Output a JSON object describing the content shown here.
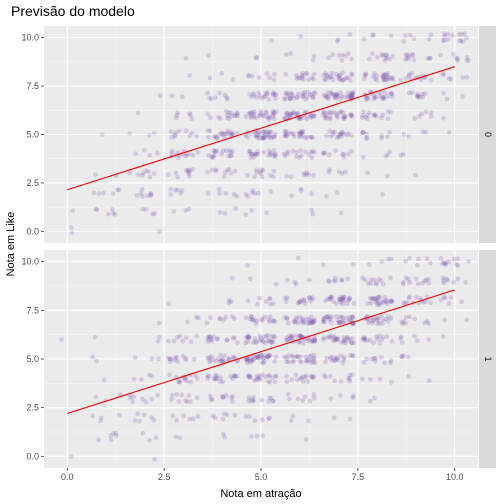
{
  "chart_data": {
    "type": "scatter",
    "title": "Previsão do modelo",
    "xlabel": "Nota em atração",
    "ylabel": "Nota em Like",
    "xlim": [
      -0.6,
      10.6
    ],
    "ylim": [
      -0.6,
      10.6
    ],
    "x_ticks": [
      {
        "value": 0,
        "label": "0.0"
      },
      {
        "value": 2.5,
        "label": "2.5"
      },
      {
        "value": 5,
        "label": "5.0"
      },
      {
        "value": 7.5,
        "label": "7.5"
      },
      {
        "value": 10,
        "label": "10.0"
      }
    ],
    "y_ticks": [
      {
        "value": 0,
        "label": "0.0"
      },
      {
        "value": 2.5,
        "label": "2.5"
      },
      {
        "value": 5,
        "label": "5.0"
      },
      {
        "value": 7.5,
        "label": "7.5"
      },
      {
        "value": 10,
        "label": "10.0"
      }
    ],
    "grid": true,
    "point_color": "#7b52ae",
    "line_color": "#ff0000",
    "panel_background": "#ebebeb",
    "strip_background": "#d9d9d9",
    "facets": [
      {
        "label": "0",
        "fit_line": {
          "x": [
            0,
            10
          ],
          "y": [
            2.15,
            8.5
          ]
        },
        "points": [
          {
            "x": 0,
            "y": 0,
            "n": 2
          },
          {
            "x": 0,
            "y": 1,
            "n": 1
          },
          {
            "x": 1,
            "y": 1,
            "n": 6
          },
          {
            "x": 1,
            "y": 2,
            "n": 6
          },
          {
            "x": 1,
            "y": 3,
            "n": 2
          },
          {
            "x": 1,
            "y": 5,
            "n": 1
          },
          {
            "x": 2,
            "y": 0,
            "n": 1
          },
          {
            "x": 2,
            "y": 1,
            "n": 4
          },
          {
            "x": 2,
            "y": 2,
            "n": 8
          },
          {
            "x": 2,
            "y": 3,
            "n": 8
          },
          {
            "x": 2,
            "y": 4,
            "n": 4
          },
          {
            "x": 2,
            "y": 5,
            "n": 3
          },
          {
            "x": 2,
            "y": 6,
            "n": 1
          },
          {
            "x": 2,
            "y": 7,
            "n": 1
          },
          {
            "x": 3,
            "y": 1,
            "n": 3
          },
          {
            "x": 3,
            "y": 2,
            "n": 6
          },
          {
            "x": 3,
            "y": 3,
            "n": 10
          },
          {
            "x": 3,
            "y": 4,
            "n": 14
          },
          {
            "x": 3,
            "y": 5,
            "n": 10
          },
          {
            "x": 3,
            "y": 6,
            "n": 6
          },
          {
            "x": 3,
            "y": 7,
            "n": 2
          },
          {
            "x": 3,
            "y": 8,
            "n": 1
          },
          {
            "x": 3,
            "y": 9,
            "n": 1
          },
          {
            "x": 4,
            "y": 1,
            "n": 3
          },
          {
            "x": 4,
            "y": 2,
            "n": 6
          },
          {
            "x": 4,
            "y": 3,
            "n": 10
          },
          {
            "x": 4,
            "y": 4,
            "n": 18
          },
          {
            "x": 4,
            "y": 5,
            "n": 22
          },
          {
            "x": 4,
            "y": 6,
            "n": 16
          },
          {
            "x": 4,
            "y": 7,
            "n": 8
          },
          {
            "x": 4,
            "y": 8,
            "n": 3
          },
          {
            "x": 4,
            "y": 9,
            "n": 1
          },
          {
            "x": 5,
            "y": 1,
            "n": 3
          },
          {
            "x": 5,
            "y": 2,
            "n": 7
          },
          {
            "x": 5,
            "y": 3,
            "n": 12
          },
          {
            "x": 5,
            "y": 4,
            "n": 22
          },
          {
            "x": 5,
            "y": 5,
            "n": 36
          },
          {
            "x": 5,
            "y": 6,
            "n": 30
          },
          {
            "x": 5,
            "y": 7,
            "n": 20
          },
          {
            "x": 5,
            "y": 8,
            "n": 8
          },
          {
            "x": 5,
            "y": 9,
            "n": 2
          },
          {
            "x": 5,
            "y": 10,
            "n": 1
          },
          {
            "x": 6,
            "y": 1,
            "n": 2
          },
          {
            "x": 6,
            "y": 2,
            "n": 4
          },
          {
            "x": 6,
            "y": 3,
            "n": 8
          },
          {
            "x": 6,
            "y": 4,
            "n": 16
          },
          {
            "x": 6,
            "y": 5,
            "n": 26
          },
          {
            "x": 6,
            "y": 6,
            "n": 36
          },
          {
            "x": 6,
            "y": 7,
            "n": 30
          },
          {
            "x": 6,
            "y": 8,
            "n": 16
          },
          {
            "x": 6,
            "y": 9,
            "n": 4
          },
          {
            "x": 6,
            "y": 10,
            "n": 1
          },
          {
            "x": 7,
            "y": 1,
            "n": 1
          },
          {
            "x": 7,
            "y": 2,
            "n": 2
          },
          {
            "x": 7,
            "y": 3,
            "n": 5
          },
          {
            "x": 7,
            "y": 4,
            "n": 10
          },
          {
            "x": 7,
            "y": 5,
            "n": 18
          },
          {
            "x": 7,
            "y": 6,
            "n": 28
          },
          {
            "x": 7,
            "y": 7,
            "n": 38
          },
          {
            "x": 7,
            "y": 8,
            "n": 26
          },
          {
            "x": 7,
            "y": 9,
            "n": 8
          },
          {
            "x": 7,
            "y": 10,
            "n": 3
          },
          {
            "x": 8,
            "y": 2,
            "n": 1
          },
          {
            "x": 8,
            "y": 3,
            "n": 2
          },
          {
            "x": 8,
            "y": 4,
            "n": 4
          },
          {
            "x": 8,
            "y": 5,
            "n": 10
          },
          {
            "x": 8,
            "y": 6,
            "n": 16
          },
          {
            "x": 8,
            "y": 7,
            "n": 26
          },
          {
            "x": 8,
            "y": 8,
            "n": 26
          },
          {
            "x": 8,
            "y": 9,
            "n": 12
          },
          {
            "x": 8,
            "y": 10,
            "n": 4
          },
          {
            "x": 9,
            "y": 3,
            "n": 1
          },
          {
            "x": 9,
            "y": 4,
            "n": 2
          },
          {
            "x": 9,
            "y": 5,
            "n": 4
          },
          {
            "x": 9,
            "y": 6,
            "n": 6
          },
          {
            "x": 9,
            "y": 7,
            "n": 10
          },
          {
            "x": 9,
            "y": 8,
            "n": 14
          },
          {
            "x": 9,
            "y": 9,
            "n": 12
          },
          {
            "x": 9,
            "y": 10,
            "n": 6
          },
          {
            "x": 10,
            "y": 5,
            "n": 1
          },
          {
            "x": 10,
            "y": 6,
            "n": 1
          },
          {
            "x": 10,
            "y": 7,
            "n": 3
          },
          {
            "x": 10,
            "y": 8,
            "n": 6
          },
          {
            "x": 10,
            "y": 9,
            "n": 8
          },
          {
            "x": 10,
            "y": 10,
            "n": 14
          }
        ]
      },
      {
        "label": "1",
        "fit_line": {
          "x": [
            0,
            10
          ],
          "y": [
            2.2,
            8.55
          ]
        },
        "points": [
          {
            "x": 0,
            "y": 0,
            "n": 1
          },
          {
            "x": 0,
            "y": 6,
            "n": 1
          },
          {
            "x": 1,
            "y": 1,
            "n": 6
          },
          {
            "x": 1,
            "y": 2,
            "n": 4
          },
          {
            "x": 1,
            "y": 3,
            "n": 3
          },
          {
            "x": 1,
            "y": 4,
            "n": 1
          },
          {
            "x": 1,
            "y": 5,
            "n": 2
          },
          {
            "x": 1,
            "y": 6,
            "n": 1
          },
          {
            "x": 2,
            "y": 0,
            "n": 1
          },
          {
            "x": 2,
            "y": 1,
            "n": 3
          },
          {
            "x": 2,
            "y": 2,
            "n": 6
          },
          {
            "x": 2,
            "y": 3,
            "n": 8
          },
          {
            "x": 2,
            "y": 4,
            "n": 4
          },
          {
            "x": 2,
            "y": 5,
            "n": 3
          },
          {
            "x": 2,
            "y": 6,
            "n": 2
          },
          {
            "x": 2,
            "y": 7,
            "n": 1
          },
          {
            "x": 3,
            "y": 1,
            "n": 2
          },
          {
            "x": 3,
            "y": 2,
            "n": 6
          },
          {
            "x": 3,
            "y": 3,
            "n": 10
          },
          {
            "x": 3,
            "y": 4,
            "n": 14
          },
          {
            "x": 3,
            "y": 5,
            "n": 12
          },
          {
            "x": 3,
            "y": 6,
            "n": 8
          },
          {
            "x": 3,
            "y": 7,
            "n": 3
          },
          {
            "x": 3,
            "y": 8,
            "n": 1
          },
          {
            "x": 4,
            "y": 1,
            "n": 2
          },
          {
            "x": 4,
            "y": 2,
            "n": 6
          },
          {
            "x": 4,
            "y": 3,
            "n": 10
          },
          {
            "x": 4,
            "y": 4,
            "n": 18
          },
          {
            "x": 4,
            "y": 5,
            "n": 24
          },
          {
            "x": 4,
            "y": 6,
            "n": 16
          },
          {
            "x": 4,
            "y": 7,
            "n": 8
          },
          {
            "x": 4,
            "y": 8,
            "n": 3
          },
          {
            "x": 4,
            "y": 9,
            "n": 1
          },
          {
            "x": 5,
            "y": 1,
            "n": 3
          },
          {
            "x": 5,
            "y": 2,
            "n": 6
          },
          {
            "x": 5,
            "y": 3,
            "n": 12
          },
          {
            "x": 5,
            "y": 4,
            "n": 22
          },
          {
            "x": 5,
            "y": 5,
            "n": 38
          },
          {
            "x": 5,
            "y": 6,
            "n": 30
          },
          {
            "x": 5,
            "y": 7,
            "n": 18
          },
          {
            "x": 5,
            "y": 8,
            "n": 8
          },
          {
            "x": 5,
            "y": 9,
            "n": 2
          },
          {
            "x": 5,
            "y": 10,
            "n": 1
          },
          {
            "x": 6,
            "y": 1,
            "n": 1
          },
          {
            "x": 6,
            "y": 2,
            "n": 3
          },
          {
            "x": 6,
            "y": 3,
            "n": 8
          },
          {
            "x": 6,
            "y": 4,
            "n": 16
          },
          {
            "x": 6,
            "y": 5,
            "n": 28
          },
          {
            "x": 6,
            "y": 6,
            "n": 38
          },
          {
            "x": 6,
            "y": 7,
            "n": 30
          },
          {
            "x": 6,
            "y": 8,
            "n": 16
          },
          {
            "x": 6,
            "y": 9,
            "n": 4
          },
          {
            "x": 6,
            "y": 10,
            "n": 1
          },
          {
            "x": 7,
            "y": 2,
            "n": 2
          },
          {
            "x": 7,
            "y": 3,
            "n": 4
          },
          {
            "x": 7,
            "y": 4,
            "n": 10
          },
          {
            "x": 7,
            "y": 5,
            "n": 18
          },
          {
            "x": 7,
            "y": 6,
            "n": 28
          },
          {
            "x": 7,
            "y": 7,
            "n": 38
          },
          {
            "x": 7,
            "y": 8,
            "n": 28
          },
          {
            "x": 7,
            "y": 9,
            "n": 8
          },
          {
            "x": 7,
            "y": 10,
            "n": 2
          },
          {
            "x": 8,
            "y": 3,
            "n": 2
          },
          {
            "x": 8,
            "y": 4,
            "n": 4
          },
          {
            "x": 8,
            "y": 5,
            "n": 10
          },
          {
            "x": 8,
            "y": 6,
            "n": 16
          },
          {
            "x": 8,
            "y": 7,
            "n": 24
          },
          {
            "x": 8,
            "y": 8,
            "n": 28
          },
          {
            "x": 8,
            "y": 9,
            "n": 12
          },
          {
            "x": 8,
            "y": 10,
            "n": 4
          },
          {
            "x": 9,
            "y": 4,
            "n": 2
          },
          {
            "x": 9,
            "y": 5,
            "n": 4
          },
          {
            "x": 9,
            "y": 6,
            "n": 6
          },
          {
            "x": 9,
            "y": 7,
            "n": 10
          },
          {
            "x": 9,
            "y": 8,
            "n": 14
          },
          {
            "x": 9,
            "y": 9,
            "n": 12
          },
          {
            "x": 9,
            "y": 10,
            "n": 6
          },
          {
            "x": 10,
            "y": 6,
            "n": 1
          },
          {
            "x": 10,
            "y": 7,
            "n": 2
          },
          {
            "x": 10,
            "y": 8,
            "n": 6
          },
          {
            "x": 10,
            "y": 9,
            "n": 8
          },
          {
            "x": 10,
            "y": 10,
            "n": 12
          }
        ]
      }
    ]
  }
}
